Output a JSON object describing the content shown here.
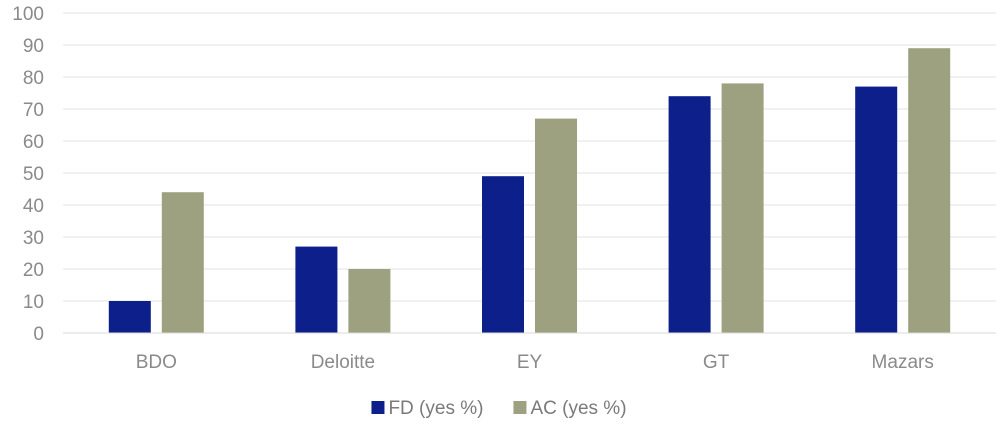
{
  "chart_data": {
    "type": "bar",
    "categories": [
      "BDO",
      "Deloitte",
      "EY",
      "GT",
      "Mazars"
    ],
    "series": [
      {
        "name": "FD (yes %)",
        "values": [
          10,
          27,
          49,
          74,
          77
        ],
        "color": "#0d1f8a"
      },
      {
        "name": "AC (yes %)",
        "values": [
          44,
          20,
          67,
          78,
          89
        ],
        "color": "#9da17f"
      }
    ],
    "ylim": [
      0,
      100
    ],
    "yticks": [
      0,
      10,
      20,
      30,
      40,
      50,
      60,
      70,
      80,
      90,
      100
    ],
    "grid": true,
    "legend_position": "bottom",
    "title": "",
    "xlabel": "",
    "ylabel": ""
  }
}
